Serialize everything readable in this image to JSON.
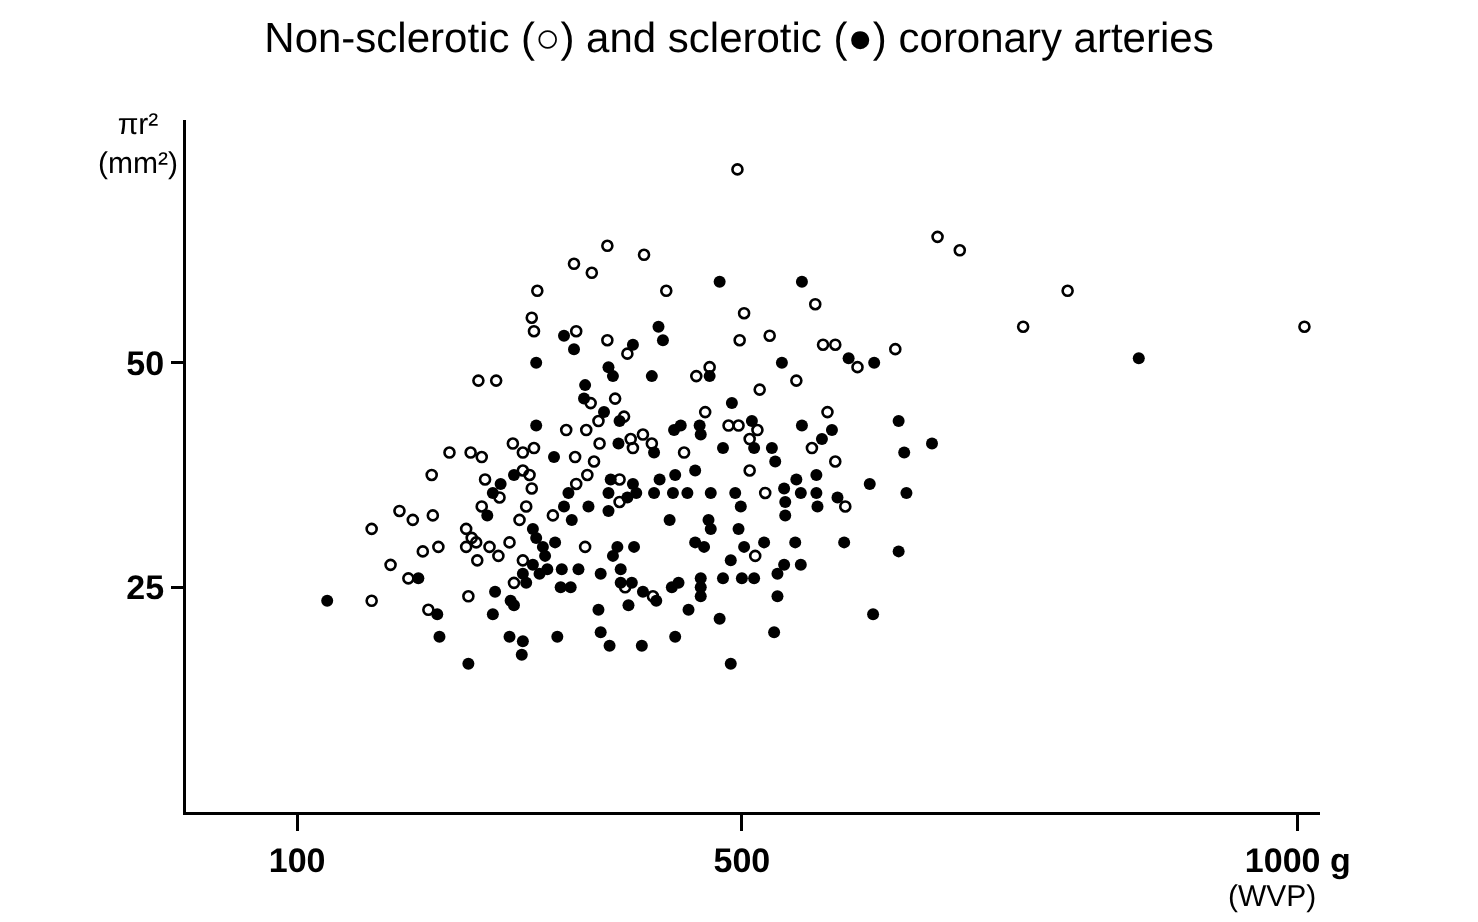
{
  "chart_data": {
    "type": "scatter",
    "title": "Non-sclerotic (○) and sclerotic (●) coronary arteries",
    "xlabel": "(WVP)",
    "ylabel": "πr² (mm²)",
    "xlim": [
      0,
      1020
    ],
    "ylim": [
      0,
      77
    ],
    "xticks": [
      100,
      500,
      {
        "value": 1000,
        "label": "1000 g"
      }
    ],
    "yticks": [
      25,
      50
    ],
    "series": [
      {
        "color": "#000000",
        "marker": "circle-open",
        "x": [
          496,
          676,
          696,
          793,
          753,
          1006,
          349,
          316,
          311,
          313,
          351,
          263,
          279,
          342,
          237,
          256,
          266,
          294,
          303,
          313,
          379,
          412,
          365,
          432,
          502,
          566,
          379,
          397,
          498,
          525,
          573,
          584,
          604,
          638,
          459,
          471,
          549,
          516,
          364,
          386,
          577,
          394,
          371,
          467,
          488,
          497,
          514,
          507,
          360,
          400,
          411,
          419,
          372,
          402,
          448,
          563,
          350,
          221,
          303,
          309,
          269,
          282,
          311,
          351,
          192,
          204,
          222,
          266,
          306,
          300,
          330,
          167,
          252,
          257,
          261,
          252,
          213,
          227,
          273,
          281,
          262,
          291,
          303,
          184,
          200,
          167,
          218,
          254,
          295,
          367,
          361,
          390,
          390,
          507,
          521,
          593,
          584,
          512,
          359,
          395,
          420
        ],
        "values": [
          71.5,
          64,
          62.5,
          58,
          54,
          54,
          61,
          58,
          55,
          53.5,
          53.5,
          48,
          48,
          42.5,
          40,
          40,
          39.5,
          41,
          40,
          40.5,
          63,
          62,
          60,
          58,
          55.5,
          56.5,
          52.5,
          51,
          52.5,
          53,
          52,
          52,
          49.5,
          51.5,
          48.5,
          49.5,
          48,
          47,
          45.5,
          46,
          44.5,
          44,
          43.5,
          44.5,
          43,
          43,
          42.5,
          41.5,
          42.5,
          41.5,
          42,
          41,
          41,
          40.5,
          40,
          40.5,
          39.5,
          37.5,
          38,
          37.5,
          37,
          35,
          36,
          36.5,
          33.5,
          32.5,
          33,
          34,
          34,
          32.5,
          33,
          31.5,
          31.5,
          30.5,
          30,
          29.5,
          29,
          29.5,
          29.5,
          28.5,
          28,
          30,
          28,
          27.5,
          26,
          23.5,
          22.5,
          24,
          25.5,
          39,
          37.5,
          37,
          34.5,
          38,
          35.5,
          34,
          39,
          28.5,
          29.5,
          25,
          24
        ]
      },
      {
        "color": "#000000",
        "marker": "circle",
        "x": [
          857,
          671,
          340,
          349,
          315,
          315,
          331,
          480,
          554,
          425,
          429,
          402,
          596,
          619,
          380,
          384,
          419,
          471,
          536,
          359,
          358,
          491,
          641,
          376,
          390,
          509,
          554,
          581,
          572,
          439,
          445,
          462,
          463,
          389,
          421,
          483,
          511,
          527,
          646,
          295,
          283,
          276,
          344,
          271,
          340,
          347,
          312,
          315,
          321,
          332,
          323,
          312,
          303,
          318,
          325,
          338,
          353,
          209,
          127,
          226,
          228,
          278,
          276,
          292,
          295,
          306,
          291,
          303,
          302,
          254,
          334,
          337,
          346,
          382,
          402,
          405,
          397,
          380,
          362,
          380,
          421,
          426,
          440,
          458,
          438,
          451,
          472,
          494,
          530,
          499,
          538,
          539,
          549,
          553,
          567,
          567,
          568,
          586,
          615,
          648,
          539,
          435,
          470,
          472,
          497,
          458,
          466,
          502,
          520,
          548,
          592,
          641,
          388,
          403,
          384,
          490,
          538,
          553,
          391,
          373,
          532,
          483,
          500,
          511,
          463,
          463,
          443,
          437,
          391,
          401,
          411,
          423,
          398,
          371,
          463,
          452,
          532,
          480,
          618,
          373,
          381,
          410,
          440,
          529,
          490
        ],
        "values": [
          50.5,
          41,
          53,
          51.5,
          50,
          43,
          39.5,
          59,
          59,
          54,
          52.5,
          52,
          50.5,
          50,
          49.5,
          48.5,
          48.5,
          48.5,
          50,
          47.5,
          46,
          45.5,
          43.5,
          44.5,
          43.5,
          43.5,
          43,
          42.5,
          41.5,
          42.5,
          43,
          43,
          42,
          41,
          40,
          40.5,
          40.5,
          40.5,
          40,
          37.5,
          36.5,
          35.5,
          35.5,
          33,
          34,
          32.5,
          31.5,
          30.5,
          29.5,
          30,
          28.5,
          27.5,
          26.5,
          26.5,
          27,
          27,
          27,
          26,
          23.5,
          22,
          19.5,
          24.5,
          22,
          23.5,
          23,
          25.5,
          19.5,
          19,
          17.5,
          16.5,
          19.5,
          25,
          25,
          37,
          36.5,
          35.5,
          35,
          35.5,
          34,
          33.5,
          35.5,
          37,
          37.5,
          38,
          35.5,
          35.5,
          35.5,
          35.5,
          39,
          34,
          36,
          34.5,
          37,
          35.5,
          37.5,
          35.5,
          34,
          35,
          36.5,
          35.5,
          33,
          32.5,
          32.5,
          31.5,
          31.5,
          30,
          29.5,
          29.5,
          30,
          30,
          30,
          29,
          29.5,
          29.5,
          28.5,
          28,
          27.5,
          27.5,
          27,
          26.5,
          26.5,
          26,
          26,
          26,
          26,
          25,
          25.5,
          25,
          25.5,
          25.5,
          24.5,
          23.5,
          23,
          22.5,
          24,
          22.5,
          24,
          21.5,
          22,
          20,
          18.5,
          18.5,
          19.5,
          20,
          16.5
        ]
      }
    ]
  }
}
